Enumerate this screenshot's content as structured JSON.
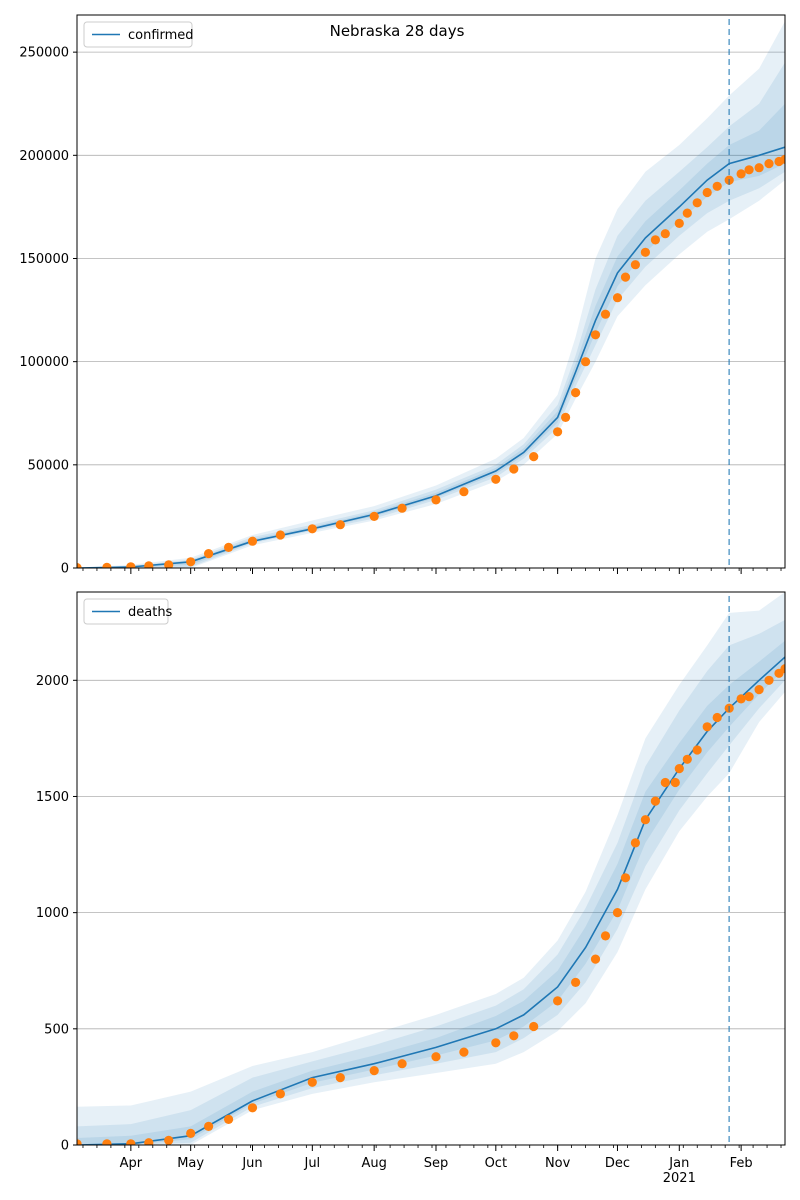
{
  "figure": {
    "title": "Nebraska 28 days",
    "forecast_start": "2021-01-26",
    "colors": {
      "model_line": "#1f77b4",
      "observed_points": "#ff7f0e",
      "band": "#1f77b4",
      "grid": "#b0b0b0",
      "forecast_marker": "#1f77b4"
    }
  },
  "chart_data": [
    {
      "type": "line",
      "panel": "top",
      "title": "Nebraska 28 days",
      "xlabel": "",
      "ylabel": "",
      "x_range": [
        "2020-03-05",
        "2021-02-23"
      ],
      "ylim": [
        0,
        268000
      ],
      "y_ticks": [
        0,
        50000,
        100000,
        150000,
        200000,
        250000
      ],
      "y_tick_labels": [
        "0",
        "50000",
        "100000",
        "150000",
        "200000",
        "250000"
      ],
      "grid": "horizontal",
      "legend": {
        "position": "top-left",
        "entries": [
          "confirmed"
        ]
      },
      "model": {
        "name": "confirmed",
        "x": [
          "2020-03-05",
          "2020-04-01",
          "2020-05-01",
          "2020-06-01",
          "2020-07-01",
          "2020-08-01",
          "2020-09-01",
          "2020-10-01",
          "2020-10-15",
          "2020-11-01",
          "2020-11-10",
          "2020-11-20",
          "2020-12-01",
          "2020-12-15",
          "2021-01-01",
          "2021-01-15",
          "2021-01-26",
          "2021-02-10",
          "2021-02-23"
        ],
        "y": [
          0,
          500,
          3000,
          13000,
          19000,
          26000,
          35000,
          47000,
          56000,
          73000,
          95000,
          120000,
          143000,
          160000,
          175000,
          188000,
          196000,
          200000,
          204000
        ],
        "bands": [
          {
            "lower": [
              0,
              0,
              0,
              11000,
              17000,
              23000,
              31000,
              42000,
              50000,
              65000,
              82000,
              100000,
              122000,
              137000,
              152000,
              163000,
              169000,
              178000,
              188000
            ],
            "upper": [
              0,
              1500,
              5000,
              16000,
              23000,
              30000,
              40000,
              53000,
              63000,
              84000,
              112000,
              150000,
              174000,
              192000,
              205000,
              218000,
              229000,
              242000,
              265000
            ]
          },
          {
            "lower": [
              0,
              0,
              500,
              12000,
              18000,
              24000,
              33000,
              44000,
              53000,
              68000,
              88000,
              108000,
              130000,
              146000,
              161000,
              172000,
              178000,
              184000,
              192000
            ],
            "upper": [
              0,
              1000,
              4000,
              15000,
              21000,
              28000,
              38000,
              50000,
              60000,
              79000,
              103000,
              135000,
              161000,
              178000,
              192000,
              204000,
              214000,
              225000,
              245000
            ]
          },
          {
            "lower": [
              0,
              200,
              1500,
              12500,
              18500,
              25000,
              34000,
              45500,
              54500,
              70500,
              91500,
              114000,
              136500,
              153000,
              168000,
              180000,
              187000,
              190000,
              196000
            ],
            "upper": [
              0,
              800,
              3500,
              14000,
              20000,
              27000,
              36500,
              48500,
              58000,
              76000,
              99000,
              127000,
              151000,
              168000,
              183000,
              196000,
              205000,
              212000,
              225000
            ]
          }
        ]
      },
      "observed": {
        "name": "",
        "x": [
          "2020-03-05",
          "2020-03-20",
          "2020-04-01",
          "2020-04-10",
          "2020-04-20",
          "2020-05-01",
          "2020-05-10",
          "2020-05-20",
          "2020-06-01",
          "2020-06-15",
          "2020-07-01",
          "2020-07-15",
          "2020-08-01",
          "2020-08-15",
          "2020-09-01",
          "2020-09-15",
          "2020-10-01",
          "2020-10-10",
          "2020-10-20",
          "2020-11-01",
          "2020-11-05",
          "2020-11-10",
          "2020-11-15",
          "2020-11-20",
          "2020-11-25",
          "2020-12-01",
          "2020-12-05",
          "2020-12-10",
          "2020-12-15",
          "2020-12-20",
          "2020-12-25",
          "2021-01-01",
          "2021-01-05",
          "2021-01-10",
          "2021-01-15",
          "2021-01-20",
          "2021-01-26",
          "2021-02-01",
          "2021-02-05",
          "2021-02-10",
          "2021-02-15",
          "2021-02-20",
          "2021-02-23"
        ],
        "y": [
          200,
          300,
          600,
          1000,
          1500,
          3000,
          7000,
          10000,
          13000,
          16000,
          19000,
          21000,
          25000,
          29000,
          33000,
          37000,
          43000,
          48000,
          54000,
          66000,
          73000,
          85000,
          100000,
          113000,
          123000,
          131000,
          141000,
          147000,
          153000,
          159000,
          162000,
          167000,
          172000,
          177000,
          182000,
          185000,
          188000,
          191000,
          193000,
          194000,
          196000,
          197000,
          198000
        ]
      }
    },
    {
      "type": "line",
      "panel": "bottom",
      "title": "",
      "xlabel": "",
      "ylabel": "",
      "x_range": [
        "2020-03-05",
        "2021-02-23"
      ],
      "ylim": [
        0,
        2380
      ],
      "y_ticks": [
        0,
        500,
        1000,
        1500,
        2000
      ],
      "y_tick_labels": [
        "0",
        "500",
        "1000",
        "1500",
        "2000"
      ],
      "x_ticks": [
        "2020-04-01",
        "2020-05-01",
        "2020-06-01",
        "2020-07-01",
        "2020-08-01",
        "2020-09-01",
        "2020-10-01",
        "2020-11-01",
        "2020-12-01",
        "2021-01-01",
        "2021-02-01"
      ],
      "x_tick_labels": [
        "Apr",
        "May",
        "Jun",
        "Jul",
        "Aug",
        "Sep",
        "Oct",
        "Nov",
        "Dec",
        "Jan",
        "Feb"
      ],
      "x_year_label": {
        "at": "2021-01-01",
        "text": "2021"
      },
      "grid": "horizontal",
      "legend": {
        "position": "top-left",
        "entries": [
          "deaths"
        ]
      },
      "model": {
        "name": "deaths",
        "x": [
          "2020-03-05",
          "2020-04-01",
          "2020-05-01",
          "2020-06-01",
          "2020-07-01",
          "2020-08-01",
          "2020-09-01",
          "2020-10-01",
          "2020-10-15",
          "2020-11-01",
          "2020-11-15",
          "2020-12-01",
          "2020-12-15",
          "2021-01-01",
          "2021-01-15",
          "2021-01-26",
          "2021-02-10",
          "2021-02-23"
        ],
        "y": [
          0,
          5,
          40,
          190,
          290,
          350,
          420,
          500,
          560,
          680,
          850,
          1100,
          1400,
          1620,
          1780,
          1880,
          2000,
          2100
        ],
        "bands": [
          {
            "lower": [
              0,
              0,
              0,
              150,
              220,
              270,
              310,
              350,
              400,
              490,
              610,
              830,
              1100,
              1350,
              1500,
              1600,
              1820,
              1950
            ],
            "upper": [
              165,
              170,
              230,
              340,
              400,
              480,
              560,
              650,
              720,
              880,
              1090,
              1420,
              1750,
              1980,
              2150,
              2290,
              2300,
              2380
            ]
          },
          {
            "lower": [
              0,
              0,
              10,
              165,
              245,
              300,
              350,
              400,
              460,
              560,
              700,
              930,
              1200,
              1440,
              1600,
              1720,
              1880,
              2000
            ],
            "upper": [
              80,
              90,
              150,
              290,
              360,
              430,
              510,
              600,
              670,
              820,
              1020,
              1300,
              1630,
              1870,
              2040,
              2150,
              2200,
              2260
            ]
          },
          {
            "lower": [
              0,
              0,
              25,
              178,
              268,
              325,
              385,
              450,
              510,
              620,
              780,
              1010,
              1300,
              1530,
              1690,
              1800,
              1940,
              2050
            ],
            "upper": [
              30,
              40,
              80,
              230,
              320,
              385,
              460,
              555,
              620,
              750,
              940,
              1210,
              1520,
              1730,
              1890,
              1980,
              2080,
              2170
            ]
          }
        ]
      },
      "observed": {
        "name": "",
        "x": [
          "2020-03-05",
          "2020-03-20",
          "2020-04-01",
          "2020-04-10",
          "2020-04-20",
          "2020-05-01",
          "2020-05-10",
          "2020-05-20",
          "2020-06-01",
          "2020-06-15",
          "2020-07-01",
          "2020-07-15",
          "2020-08-01",
          "2020-08-15",
          "2020-09-01",
          "2020-09-15",
          "2020-10-01",
          "2020-10-10",
          "2020-10-20",
          "2020-11-01",
          "2020-11-10",
          "2020-11-20",
          "2020-11-25",
          "2020-12-01",
          "2020-12-05",
          "2020-12-10",
          "2020-12-15",
          "2020-12-20",
          "2020-12-25",
          "2020-12-30",
          "2021-01-01",
          "2021-01-05",
          "2021-01-10",
          "2021-01-15",
          "2021-01-20",
          "2021-01-26",
          "2021-02-01",
          "2021-02-05",
          "2021-02-10",
          "2021-02-15",
          "2021-02-20",
          "2021-02-23"
        ],
        "y": [
          5,
          5,
          5,
          10,
          20,
          50,
          80,
          110,
          160,
          220,
          270,
          290,
          320,
          350,
          380,
          400,
          440,
          470,
          510,
          620,
          700,
          800,
          900,
          1000,
          1150,
          1300,
          1400,
          1480,
          1560,
          1560,
          1620,
          1660,
          1700,
          1800,
          1840,
          1880,
          1920,
          1930,
          1960,
          2000,
          2030,
          2050
        ]
      }
    }
  ]
}
